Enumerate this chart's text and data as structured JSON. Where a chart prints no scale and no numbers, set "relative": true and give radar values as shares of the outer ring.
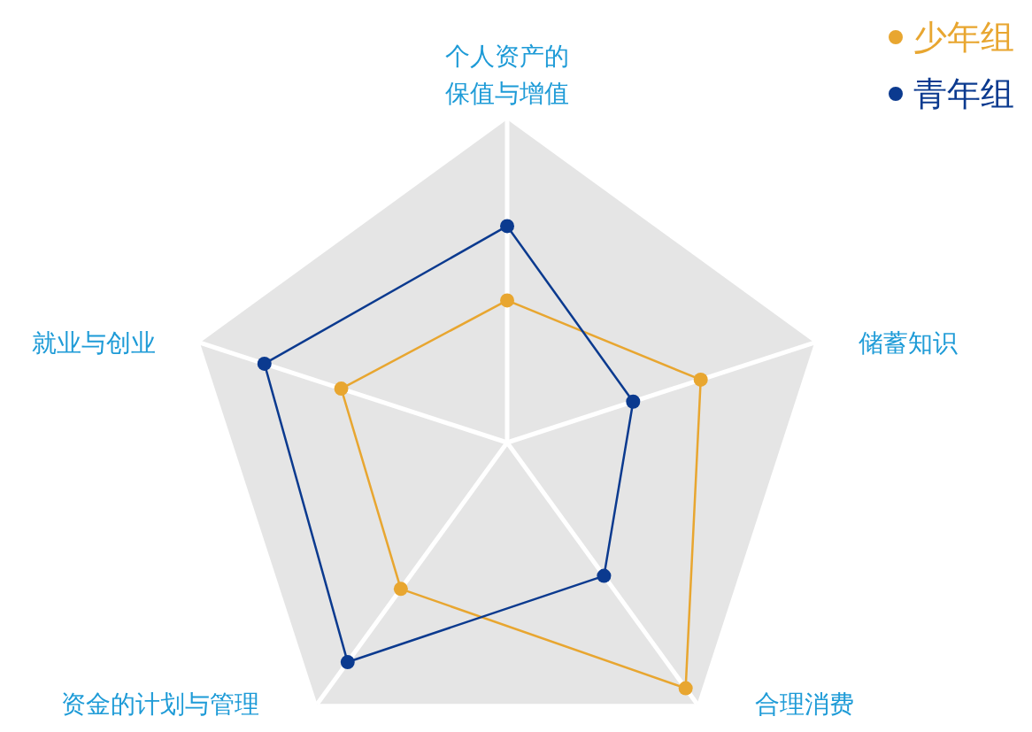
{
  "chart_data": {
    "type": "radar",
    "relative": true,
    "legend": "top right",
    "marker": "circle",
    "categories": [
      "个人资产的保值与增值",
      "储蓄知识",
      "合理消费",
      "资金的计划与管理",
      "就业与创业"
    ],
    "series": [
      {
        "name": "少年组",
        "color": "#e8a630",
        "values": [
          0.44,
          0.63,
          0.94,
          0.56,
          0.54
        ]
      },
      {
        "name": "青年组",
        "color": "#0b3a8f",
        "values": [
          0.67,
          0.41,
          0.51,
          0.84,
          0.79
        ]
      }
    ]
  }
}
